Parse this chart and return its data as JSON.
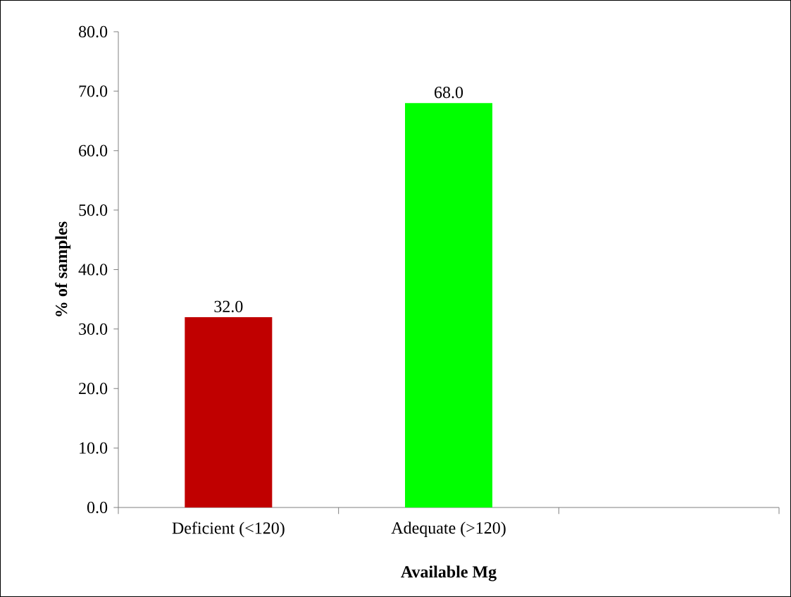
{
  "chart_data": {
    "type": "bar",
    "categories": [
      "Deficient (<120)",
      "Adequate (>120)",
      null
    ],
    "values": [
      32.0,
      68.0,
      null
    ],
    "colors": [
      "#c00000",
      "#00ff00",
      null
    ],
    "value_labels": [
      "32.0",
      "68.0",
      null
    ],
    "xlabel": "Available Mg",
    "ylabel": "% of samples",
    "ylim": [
      0,
      80
    ],
    "yticks": [
      {
        "value": 0,
        "label": "0.0"
      },
      {
        "value": 10,
        "label": "10.0"
      },
      {
        "value": 20,
        "label": "20.0"
      },
      {
        "value": 30,
        "label": "30.0"
      },
      {
        "value": 40,
        "label": "40.0"
      },
      {
        "value": 50,
        "label": "50.0"
      },
      {
        "value": 60,
        "label": "60.0"
      },
      {
        "value": 70,
        "label": "70.0"
      },
      {
        "value": 80,
        "label": "80.0"
      }
    ],
    "grid": false
  }
}
